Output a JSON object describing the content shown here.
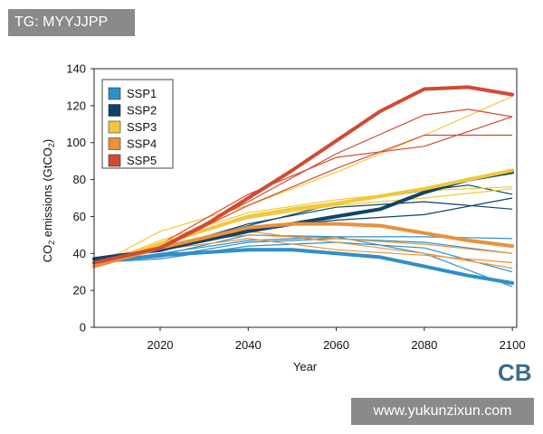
{
  "watermark_top": "TG: MYYJJPP",
  "watermark_bottom": "www.yukunzixun.com",
  "logo_text": "CB",
  "chart_data": {
    "type": "line",
    "xlabel": "Year",
    "ylabel_prefix": "CO",
    "ylabel_sub": "2",
    "ylabel_mid": " emissions (GtCO",
    "ylabel_sub2": "2",
    "ylabel_suffix": ")",
    "xlim": [
      2005,
      2101
    ],
    "ylim": [
      0,
      140
    ],
    "xticks": [
      2020,
      2040,
      2060,
      2080,
      2100
    ],
    "yticks": [
      0,
      20,
      40,
      60,
      80,
      100,
      120,
      140
    ],
    "legend_position": "top-left",
    "groups": [
      {
        "name": "SSP1",
        "color": "#2f8fc9",
        "marker": {
          "x": [
            2005,
            2020,
            2040,
            2050,
            2060,
            2070,
            2080,
            2090,
            2100
          ],
          "y": [
            35,
            39,
            42,
            42,
            40,
            38,
            33,
            28,
            24
          ]
        },
        "members": [
          {
            "x": [
              2005,
              2020,
              2040,
              2060,
              2080,
              2100
            ],
            "y": [
              35,
              38,
              46,
              48,
              46,
              40
            ]
          },
          {
            "x": [
              2005,
              2020,
              2040,
              2060,
              2080,
              2100
            ],
            "y": [
              35,
              37,
              44,
              46,
              43,
              30
            ]
          },
          {
            "x": [
              2005,
              2020,
              2040,
              2060,
              2080,
              2100
            ],
            "y": [
              35,
              39,
              50,
              49,
              40,
              22
            ]
          },
          {
            "x": [
              2005,
              2020,
              2040,
              2060,
              2080,
              2100
            ],
            "y": [
              35,
              40,
              47,
              49,
              49,
              48
            ]
          }
        ]
      },
      {
        "name": "SSP2",
        "color": "#0f4468",
        "marker": {
          "x": [
            2005,
            2020,
            2040,
            2050,
            2060,
            2070,
            2080,
            2090,
            2100
          ],
          "y": [
            37,
            42,
            52,
            56,
            60,
            64,
            73,
            80,
            84
          ]
        },
        "members": [
          {
            "x": [
              2005,
              2020,
              2040,
              2060,
              2080,
              2090,
              2100
            ],
            "y": [
              37,
              43,
              55,
              67,
              74,
              77,
              72
            ]
          },
          {
            "x": [
              2005,
              2020,
              2040,
              2060,
              2080,
              2100
            ],
            "y": [
              37,
              42,
              56,
              65,
              68,
              64
            ]
          },
          {
            "x": [
              2005,
              2020,
              2040,
              2060,
              2080,
              2100
            ],
            "y": [
              37,
              41,
              53,
              58,
              61,
              70
            ]
          }
        ]
      },
      {
        "name": "SSP3",
        "color": "#f0c83c",
        "marker": {
          "x": [
            2005,
            2020,
            2040,
            2050,
            2060,
            2070,
            2080,
            2090,
            2100
          ],
          "y": [
            33,
            45,
            60,
            64,
            67,
            71,
            75,
            80,
            85
          ]
        },
        "members": [
          {
            "x": [
              2005,
              2020,
              2040,
              2060,
              2080,
              2100
            ],
            "y": [
              33,
              47,
              62,
              69,
              74,
              76
            ]
          },
          {
            "x": [
              2005,
              2020,
              2040,
              2060,
              2080,
              2100
            ],
            "y": [
              33,
              52,
              66,
              84,
              104,
              125
            ]
          },
          {
            "x": [
              2005,
              2020,
              2040,
              2060,
              2080,
              2100
            ],
            "y": [
              33,
              46,
              59,
              66,
              70,
              75
            ]
          }
        ]
      },
      {
        "name": "SSP4",
        "color": "#e8923c",
        "marker": {
          "x": [
            2005,
            2020,
            2040,
            2050,
            2060,
            2070,
            2080,
            2090,
            2100
          ],
          "y": [
            33,
            43,
            54,
            56,
            56,
            55,
            51,
            47,
            44
          ]
        },
        "members": [
          {
            "x": [
              2005,
              2020,
              2040,
              2060,
              2080,
              2100
            ],
            "y": [
              33,
              44,
              52,
              46,
              40,
              32
            ]
          },
          {
            "x": [
              2005,
              2020,
              2040,
              2060,
              2080,
              2100
            ],
            "y": [
              33,
              45,
              50,
              48,
              45,
              40
            ]
          },
          {
            "x": [
              2005,
              2020,
              2040,
              2060,
              2080,
              2100
            ],
            "y": [
              33,
              42,
              48,
              42,
              39,
              35
            ]
          }
        ]
      },
      {
        "name": "SSP5",
        "color": "#d24a32",
        "marker": {
          "x": [
            2005,
            2020,
            2030,
            2040,
            2050,
            2060,
            2070,
            2080,
            2090,
            2100
          ],
          "y": [
            35,
            43,
            55,
            70,
            85,
            101,
            117,
            129,
            130,
            126
          ]
        },
        "members": [
          {
            "x": [
              2005,
              2020,
              2040,
              2060,
              2080,
              2090,
              2100
            ],
            "y": [
              35,
              44,
              68,
              94,
              115,
              118,
              114
            ]
          },
          {
            "x": [
              2005,
              2020,
              2040,
              2060,
              2080,
              2100
            ],
            "y": [
              35,
              43,
              66,
              86,
              104,
              104
            ]
          },
          {
            "x": [
              2005,
              2020,
              2040,
              2060,
              2080,
              2100
            ],
            "y": [
              35,
              45,
              72,
              92,
              98,
              114
            ]
          }
        ]
      }
    ]
  }
}
